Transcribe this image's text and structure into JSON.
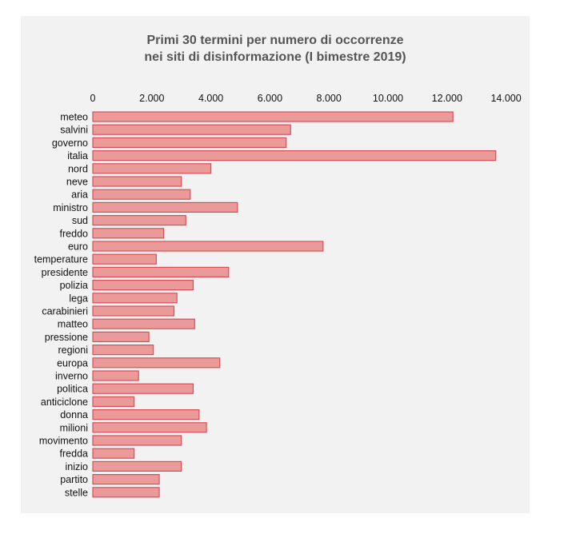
{
  "chart_data": {
    "type": "bar",
    "orientation": "horizontal",
    "title": [
      "Primi 30 termini per numero di occorrenze",
      "nei siti di disinformazione (I bimestre 2019)"
    ],
    "xlabel": "",
    "ylabel": "",
    "axis_position": "top",
    "xlim": [
      0,
      14500
    ],
    "ticks": [
      0,
      2000,
      4000,
      6000,
      8000,
      10000,
      12000,
      14000
    ],
    "tick_labels": [
      "0",
      "2.000",
      "4.000",
      "6.000",
      "8.000",
      "10.000",
      "12.000",
      "14.000"
    ],
    "grid": false,
    "categories": [
      "meteo",
      "salvini",
      "governo",
      "italia",
      "nord",
      "neve",
      "aria",
      "ministro",
      "sud",
      "freddo",
      "euro",
      "temperature",
      "presidente",
      "polizia",
      "lega",
      "carabinieri",
      "matteo",
      "pressione",
      "regioni",
      "europa",
      "inverno",
      "politica",
      "anticiclone",
      "donna",
      "milioni",
      "movimento",
      "fredda",
      "inizio",
      "partito",
      "stelle"
    ],
    "values": [
      12200,
      6700,
      6550,
      13650,
      4000,
      3000,
      3300,
      4900,
      3150,
      2400,
      7800,
      2150,
      4600,
      3400,
      2850,
      2750,
      3450,
      1900,
      2050,
      4300,
      1550,
      3400,
      1400,
      3600,
      3850,
      3000,
      1400,
      3000,
      2250,
      2250
    ],
    "bar_fill": "#eb9a9a",
    "bar_stroke": "#d94f58"
  }
}
